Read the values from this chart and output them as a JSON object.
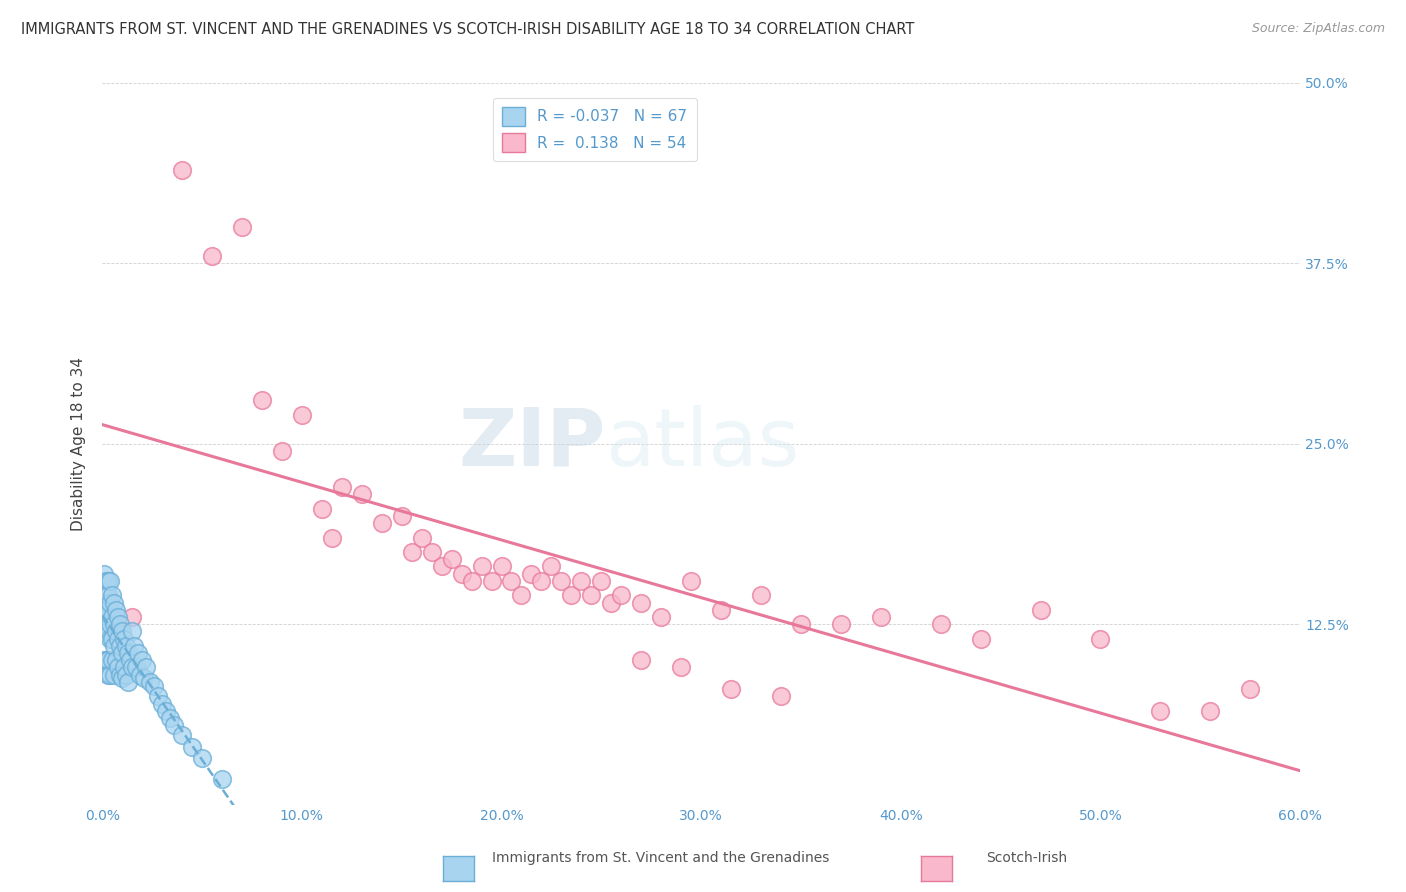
{
  "title": "IMMIGRANTS FROM ST. VINCENT AND THE GRENADINES VS SCOTCH-IRISH DISABILITY AGE 18 TO 34 CORRELATION CHART",
  "source": "Source: ZipAtlas.com",
  "ylabel": "Disability Age 18 to 34",
  "xlim": [
    0.0,
    0.6
  ],
  "ylim": [
    0.0,
    0.5
  ],
  "xticks": [
    0.0,
    0.1,
    0.2,
    0.3,
    0.4,
    0.5,
    0.6
  ],
  "yticks": [
    0.0,
    0.125,
    0.25,
    0.375,
    0.5
  ],
  "yticklabels_right": [
    "",
    "12.5%",
    "25.0%",
    "37.5%",
    "50.0%"
  ],
  "legend_R1": "-0.037",
  "legend_N1": "67",
  "legend_R2": "0.138",
  "legend_N2": "54",
  "series1_label": "Immigrants from St. Vincent and the Grenadines",
  "series2_label": "Scotch-Irish",
  "color1": "#a8d4f0",
  "color2": "#f9b8cc",
  "edge1_color": "#6aaed6",
  "edge2_color": "#e8789a",
  "line1_color": "#6aaed6",
  "line2_color": "#e8789a",
  "background_color": "#ffffff",
  "watermark_zip": "ZIP",
  "watermark_atlas": "atlas",
  "blue_scatter_x": [
    0.001,
    0.001,
    0.001,
    0.001,
    0.002,
    0.002,
    0.002,
    0.002,
    0.002,
    0.003,
    0.003,
    0.003,
    0.003,
    0.003,
    0.003,
    0.004,
    0.004,
    0.004,
    0.004,
    0.004,
    0.005,
    0.005,
    0.005,
    0.005,
    0.006,
    0.006,
    0.006,
    0.006,
    0.007,
    0.007,
    0.007,
    0.008,
    0.008,
    0.008,
    0.009,
    0.009,
    0.009,
    0.01,
    0.01,
    0.01,
    0.011,
    0.011,
    0.012,
    0.012,
    0.013,
    0.013,
    0.014,
    0.015,
    0.015,
    0.016,
    0.017,
    0.018,
    0.019,
    0.02,
    0.021,
    0.022,
    0.024,
    0.026,
    0.028,
    0.03,
    0.032,
    0.034,
    0.036,
    0.04,
    0.045,
    0.05,
    0.06
  ],
  "blue_scatter_y": [
    0.16,
    0.14,
    0.13,
    0.1,
    0.155,
    0.145,
    0.135,
    0.125,
    0.1,
    0.155,
    0.145,
    0.135,
    0.12,
    0.1,
    0.09,
    0.155,
    0.14,
    0.125,
    0.115,
    0.09,
    0.145,
    0.13,
    0.115,
    0.1,
    0.14,
    0.125,
    0.11,
    0.09,
    0.135,
    0.12,
    0.1,
    0.13,
    0.115,
    0.095,
    0.125,
    0.11,
    0.09,
    0.12,
    0.105,
    0.088,
    0.115,
    0.095,
    0.11,
    0.09,
    0.105,
    0.085,
    0.1,
    0.12,
    0.095,
    0.11,
    0.095,
    0.105,
    0.09,
    0.1,
    0.088,
    0.095,
    0.085,
    0.082,
    0.075,
    0.07,
    0.065,
    0.06,
    0.055,
    0.048,
    0.04,
    0.032,
    0.018
  ],
  "pink_scatter_x": [
    0.015,
    0.04,
    0.055,
    0.07,
    0.08,
    0.09,
    0.1,
    0.11,
    0.115,
    0.12,
    0.13,
    0.14,
    0.15,
    0.155,
    0.16,
    0.165,
    0.17,
    0.175,
    0.18,
    0.185,
    0.19,
    0.195,
    0.2,
    0.205,
    0.21,
    0.215,
    0.22,
    0.225,
    0.23,
    0.235,
    0.24,
    0.245,
    0.25,
    0.255,
    0.26,
    0.27,
    0.28,
    0.295,
    0.31,
    0.33,
    0.35,
    0.37,
    0.39,
    0.42,
    0.44,
    0.47,
    0.5,
    0.53,
    0.555,
    0.575,
    0.27,
    0.29,
    0.315,
    0.34
  ],
  "pink_scatter_y": [
    0.13,
    0.44,
    0.38,
    0.4,
    0.28,
    0.245,
    0.27,
    0.205,
    0.185,
    0.22,
    0.215,
    0.195,
    0.2,
    0.175,
    0.185,
    0.175,
    0.165,
    0.17,
    0.16,
    0.155,
    0.165,
    0.155,
    0.165,
    0.155,
    0.145,
    0.16,
    0.155,
    0.165,
    0.155,
    0.145,
    0.155,
    0.145,
    0.155,
    0.14,
    0.145,
    0.14,
    0.13,
    0.155,
    0.135,
    0.145,
    0.125,
    0.125,
    0.13,
    0.125,
    0.115,
    0.135,
    0.115,
    0.065,
    0.065,
    0.08,
    0.1,
    0.095,
    0.08,
    0.075
  ],
  "figsize": [
    14.06,
    8.92
  ],
  "dpi": 100
}
